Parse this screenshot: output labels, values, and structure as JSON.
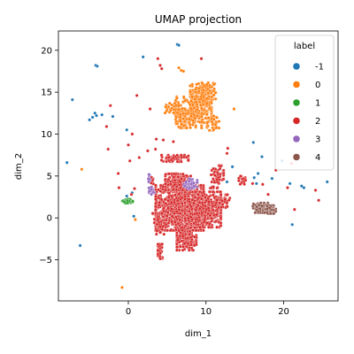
{
  "chart_data": {
    "type": "scatter",
    "title": "UMAP projection",
    "xlabel": "dim_1",
    "ylabel": "dim_2",
    "xlim": [
      -9.0,
      27.0
    ],
    "ylim": [
      -9.9,
      22.3
    ],
    "xticks": [
      0,
      10,
      20
    ],
    "yticks": [
      -5,
      0,
      5,
      10,
      15,
      20
    ],
    "grid": false,
    "legend": {
      "title": "label",
      "placement": "top-right",
      "entries": [
        {
          "label": "-1",
          "color": "#1f77b4"
        },
        {
          "label": "0",
          "color": "#ff7f0e"
        },
        {
          "label": "1",
          "color": "#2ca02c"
        },
        {
          "label": "2",
          "color": "#d62728"
        },
        {
          "label": "3",
          "color": "#9467bd"
        },
        {
          "label": "4",
          "color": "#8c564b"
        }
      ]
    },
    "series": [
      {
        "name": "-1",
        "color": "#1f77b4",
        "points": [
          [
            6.3,
            20.7
          ],
          [
            6.5,
            20.6
          ],
          [
            -4.2,
            18.2
          ],
          [
            -4.0,
            18.1
          ],
          [
            1.9,
            19.2
          ],
          [
            -7.2,
            14.1
          ],
          [
            -4.3,
            12.5
          ],
          [
            -4.1,
            12.2
          ],
          [
            -4.6,
            12.0
          ],
          [
            -3.4,
            12.3
          ],
          [
            -5.0,
            11.7
          ],
          [
            -2.0,
            12.1
          ],
          [
            -0.2,
            10.5
          ],
          [
            -7.9,
            6.6
          ],
          [
            -6.2,
            -3.3
          ],
          [
            16.1,
            9.0
          ],
          [
            17.2,
            7.3
          ],
          [
            16.7,
            5.3
          ],
          [
            16.2,
            4.8
          ],
          [
            16.5,
            4.1
          ],
          [
            18.5,
            4.7
          ],
          [
            19.8,
            6.8
          ],
          [
            20.8,
            4.1
          ],
          [
            22.3,
            3.8
          ],
          [
            22.6,
            3.6
          ],
          [
            25.6,
            4.3
          ],
          [
            21.1,
            -0.8
          ],
          [
            0.5,
            3.0
          ],
          [
            -0.2,
            2.6
          ],
          [
            0.7,
            0.2
          ],
          [
            6.1,
            4.6
          ],
          [
            13.4,
            6.1
          ],
          [
            12.7,
            4.3
          ],
          [
            11.8,
            5.8
          ]
        ]
      },
      {
        "name": "0",
        "color": "#ff7f0e",
        "points": [
          [
            6.5,
            17.9
          ],
          [
            6.8,
            17.6
          ],
          [
            7.1,
            17.5
          ],
          [
            -6.0,
            5.8
          ],
          [
            0.9,
            -0.2
          ],
          [
            -0.8,
            -8.3
          ],
          [
            13.6,
            13.0
          ]
        ],
        "clusters": [
          {
            "cx": 9.6,
            "cy": 14.8,
            "rx": 1.7,
            "ry": 1.4,
            "n": 160
          },
          {
            "cx": 8.4,
            "cy": 12.9,
            "rx": 2.4,
            "ry": 1.6,
            "n": 240
          },
          {
            "cx": 7.8,
            "cy": 11.6,
            "rx": 1.7,
            "ry": 0.9,
            "n": 100
          },
          {
            "cx": 10.9,
            "cy": 11.4,
            "rx": 0.8,
            "ry": 1.0,
            "n": 40
          },
          {
            "cx": 5.6,
            "cy": 13.1,
            "rx": 0.9,
            "ry": 0.6,
            "n": 30
          }
        ]
      },
      {
        "name": "1",
        "color": "#2ca02c",
        "points": [],
        "clusters": [
          {
            "cx": -0.1,
            "cy": 2.0,
            "rx": 0.7,
            "ry": 0.25,
            "n": 30
          }
        ]
      },
      {
        "name": "2",
        "color": "#d62728",
        "points": [
          [
            3.8,
            19.0
          ],
          [
            9.4,
            19.0
          ],
          [
            4.1,
            18.2
          ],
          [
            4.3,
            17.8
          ],
          [
            1.1,
            14.6
          ],
          [
            2.8,
            13.0
          ],
          [
            -2.3,
            13.4
          ],
          [
            -2.8,
            10.9
          ],
          [
            0.5,
            10.0
          ],
          [
            3.6,
            9.4
          ],
          [
            4.5,
            9.3
          ],
          [
            5.8,
            9.1
          ],
          [
            12.7,
            7.7
          ],
          [
            12.8,
            8.3
          ],
          [
            3.5,
            8.2
          ],
          [
            2.5,
            8.0
          ],
          [
            1.4,
            7.2
          ],
          [
            0.0,
            8.7
          ],
          [
            0.2,
            6.8
          ],
          [
            -2.6,
            8.2
          ],
          [
            -1.3,
            5.3
          ],
          [
            -1.2,
            3.6
          ],
          [
            0.4,
            2.8
          ],
          [
            19.0,
            5.7
          ],
          [
            18.0,
            2.8
          ],
          [
            17.3,
            4.0
          ],
          [
            20.5,
            3.6
          ],
          [
            21.0,
            6.5
          ],
          [
            24.1,
            3.3
          ],
          [
            24.5,
            2.1
          ],
          [
            21.4,
            1.0
          ],
          [
            16.0,
            4.1
          ],
          [
            15.1,
            4.5
          ],
          [
            0.8,
            3.5
          ]
        ],
        "clusters": [
          {
            "cx": 6.6,
            "cy": 1.2,
            "rx": 3.2,
            "ry": 2.8,
            "n": 900
          },
          {
            "cx": 9.6,
            "cy": 1.0,
            "rx": 2.4,
            "ry": 2.2,
            "n": 500
          },
          {
            "cx": 6.4,
            "cy": 4.3,
            "rx": 1.7,
            "ry": 1.0,
            "n": 200
          },
          {
            "cx": 7.5,
            "cy": -2.5,
            "rx": 1.3,
            "ry": 1.4,
            "n": 150
          },
          {
            "cx": 4.0,
            "cy": -0.7,
            "rx": 0.9,
            "ry": 1.3,
            "n": 70
          },
          {
            "cx": 4.1,
            "cy": -4.0,
            "rx": 0.3,
            "ry": 0.9,
            "n": 45
          },
          {
            "cx": 11.4,
            "cy": 4.9,
            "rx": 0.9,
            "ry": 1.4,
            "n": 60
          },
          {
            "cx": 12.2,
            "cy": 2.0,
            "rx": 0.9,
            "ry": 0.8,
            "n": 40
          },
          {
            "cx": 6.0,
            "cy": 7.1,
            "rx": 1.8,
            "ry": 0.4,
            "n": 60
          },
          {
            "cx": 14.8,
            "cy": 4.5,
            "rx": 0.6,
            "ry": 0.5,
            "n": 15
          },
          {
            "cx": 3.0,
            "cy": 4.5,
            "rx": 0.3,
            "ry": 0.6,
            "n": 15
          }
        ]
      },
      {
        "name": "3",
        "color": "#9467bd",
        "points": [],
        "clusters": [
          {
            "cx": 2.9,
            "cy": 3.2,
            "rx": 0.5,
            "ry": 0.5,
            "n": 25
          },
          {
            "cx": 2.7,
            "cy": 4.6,
            "rx": 0.2,
            "ry": 0.6,
            "n": 10
          },
          {
            "cx": 8.0,
            "cy": 4.0,
            "rx": 0.9,
            "ry": 0.7,
            "n": 40
          }
        ]
      },
      {
        "name": "4",
        "color": "#8c564b",
        "points": [],
        "clusters": [
          {
            "cx": 17.0,
            "cy": 1.2,
            "rx": 1.0,
            "ry": 0.6,
            "n": 70
          },
          {
            "cx": 18.3,
            "cy": 1.0,
            "rx": 0.7,
            "ry": 0.5,
            "n": 40
          }
        ]
      }
    ]
  }
}
